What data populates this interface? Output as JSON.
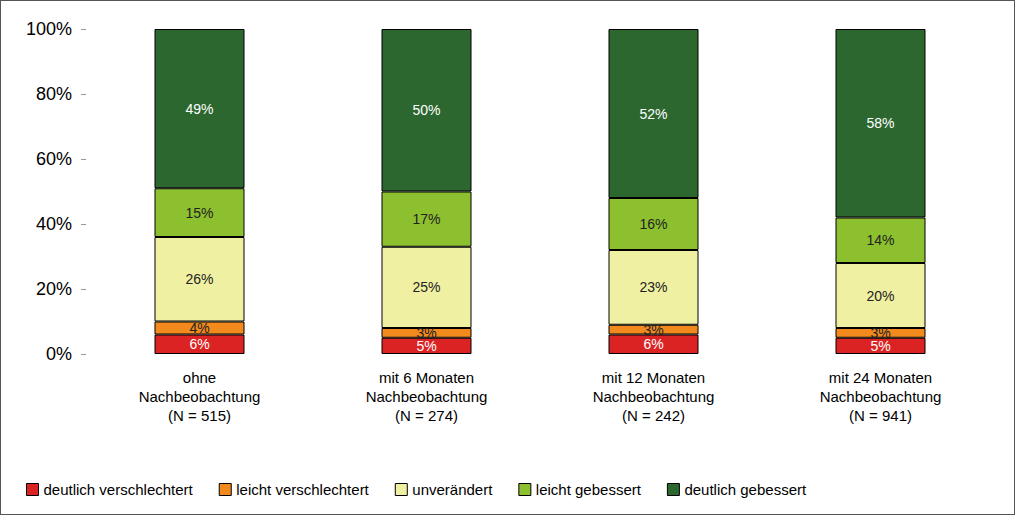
{
  "chart_data": {
    "type": "bar",
    "stacked": true,
    "data_labels": true,
    "grid": false,
    "legend": "bottom",
    "categories": [
      "ohne\nNachbeobachtung\n(N = 515)",
      "mit 6 Monaten\nNachbeobachtung\n(N = 274)",
      "mit 12 Monaten\nNachbeobachtung\n(N = 242)",
      "mit 24 Monaten\nNachbeobachtung\n(N = 941)"
    ],
    "ylim": [
      0,
      100
    ],
    "yticks": [
      {
        "value": 0,
        "label": "0%"
      },
      {
        "value": 20,
        "label": "20%"
      },
      {
        "value": 40,
        "label": "40%"
      },
      {
        "value": 60,
        "label": "60%"
      },
      {
        "value": 80,
        "label": "80%"
      },
      {
        "value": 100,
        "label": "100%"
      }
    ],
    "series": [
      {
        "name": "deutlich verschlechtert",
        "color": "#dc2323",
        "values": [
          6,
          5,
          6,
          5
        ],
        "value_labels": [
          "6%",
          "5%",
          "6%",
          "5%"
        ]
      },
      {
        "name": "leicht verschlechtert",
        "color": "#f28a1e",
        "values": [
          4,
          3,
          3,
          3
        ],
        "value_labels": [
          "4%",
          "3%",
          "3%",
          "3%"
        ]
      },
      {
        "name": "unverändert",
        "color": "#f0f0a2",
        "values": [
          26,
          25,
          23,
          20
        ],
        "value_labels": [
          "26%",
          "25%",
          "23%",
          "20%"
        ]
      },
      {
        "name": "leicht gebessert",
        "color": "#8dc02f",
        "values": [
          15,
          17,
          16,
          14
        ],
        "value_labels": [
          "15%",
          "17%",
          "16%",
          "14%"
        ]
      },
      {
        "name": "deutlich gebessert",
        "color": "#2b672f",
        "values": [
          49,
          50,
          52,
          58
        ],
        "value_labels": [
          "49%",
          "50%",
          "52%",
          "58%"
        ]
      }
    ]
  }
}
